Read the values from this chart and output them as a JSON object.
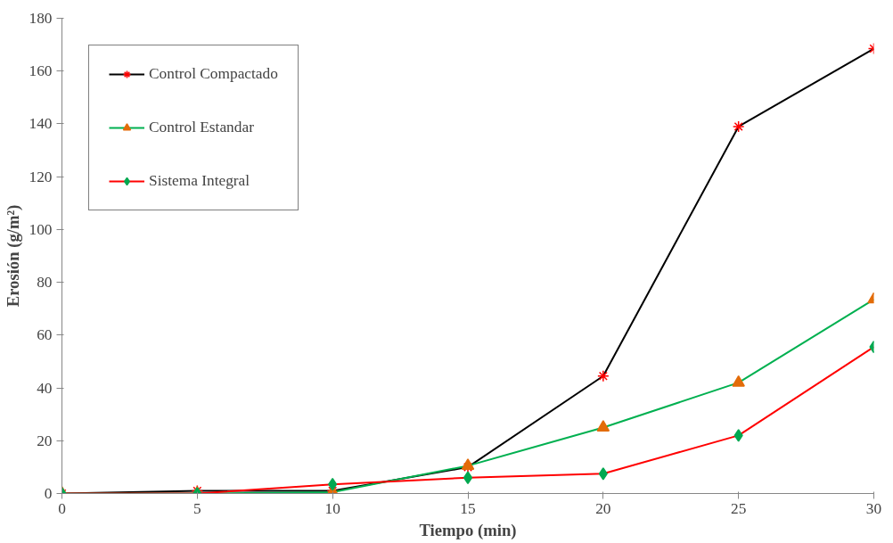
{
  "chart_data": {
    "type": "line",
    "xlabel": "Tiempo (min)",
    "ylabel": "Erosión (g/m²)",
    "x": [
      0,
      5,
      10,
      15,
      20,
      25,
      30
    ],
    "series": [
      {
        "name": "Control Compactado",
        "color": "#000000",
        "marker": "cross",
        "colors": [
          "#ff0000",
          "#ff0000",
          "#ff0000",
          "#ff0000",
          "#ff0000",
          "#ff0000",
          "#ff0000"
        ],
        "values": [
          0,
          1,
          1,
          10,
          44.5,
          139,
          168.5
        ]
      },
      {
        "name": "Control Estandar",
        "color": "#00b050",
        "marker": "triangle",
        "colors": [
          "#e36c09",
          "#e36c09",
          "#e36c09",
          "#e36c09",
          "#e36c09",
          "#e36c09",
          "#e36c09"
        ],
        "values": [
          0,
          0,
          0.5,
          10.5,
          25,
          42,
          73.5
        ]
      },
      {
        "name": "Sistema Integral",
        "color": "#ff0000",
        "marker": "diamond",
        "colors": [
          "#00a850",
          "#00a850",
          "#00a850",
          "#00a850",
          "#00a850",
          "#00a850",
          "#00a850"
        ],
        "values": [
          0,
          0,
          3.5,
          6,
          7.5,
          22,
          55.5
        ]
      }
    ],
    "xlim": [
      0,
      30
    ],
    "xticks": [
      0,
      5,
      10,
      15,
      20,
      25,
      30
    ],
    "ylim": [
      0,
      180
    ],
    "yticks": [
      0,
      20,
      40,
      60,
      80,
      100,
      120,
      140,
      160,
      180
    ],
    "grid": false,
    "legend": "top left",
    "line_style": "solid"
  }
}
